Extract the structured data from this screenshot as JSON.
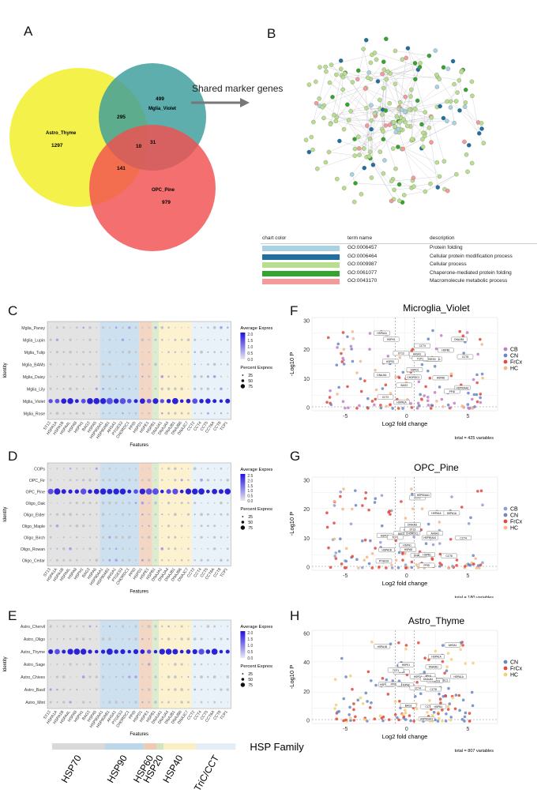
{
  "panels": {
    "A": "A",
    "B": "B",
    "C": "C",
    "D": "D",
    "E": "E",
    "F": "F",
    "G": "G",
    "H": "H"
  },
  "venn": {
    "sets": [
      {
        "name": "Astro_Thyme",
        "count": "1297",
        "color": "#f2f02a"
      },
      {
        "name": "Mglia_Violet",
        "count": "499",
        "color": "#3a9c9c"
      },
      {
        "name": "OPC_Pine",
        "count": "979",
        "color": "#f25050"
      }
    ],
    "overlaps": {
      "astro_mglia": "295",
      "astro_opc": "141",
      "mglia_opc": "31",
      "all": "10"
    }
  },
  "arrow_label": "Shared marker genes",
  "network_legend": {
    "headers": [
      "chart color",
      "term name",
      "description"
    ],
    "rows": [
      {
        "color": "#a9d3e4",
        "term": "GO:0006457",
        "desc": "Protein folding"
      },
      {
        "color": "#1f6f9f",
        "term": "GO:0006464",
        "desc": "Cellular protein modification process"
      },
      {
        "color": "#b9df8e",
        "term": "GO:0009987",
        "desc": "Cellular process"
      },
      {
        "color": "#35a32f",
        "term": "GO:0061077",
        "desc": "Chaperone-mediated protein folding"
      },
      {
        "color": "#f59a9a",
        "term": "GO:0043170",
        "desc": "Macromolecule metabolic process"
      }
    ]
  },
  "dotplot": {
    "features": [
      "ST13",
      "HSPA1A",
      "HSPA1B",
      "HSPA4L",
      "HSPA8",
      "HSPH1",
      "BAG3",
      "HSPA5",
      "HSP90AA1",
      "HSP90AB1",
      "AHSA1",
      "PTGES3",
      "CHORDC1",
      "PPID",
      "HSPD1",
      "HSPE1",
      "HSPB1",
      "DNAJA1",
      "DNAJA4",
      "DNAJB1",
      "DNAJB6",
      "DNAJC7",
      "CCT2",
      "CCT4",
      "CCT5",
      "CCT6A",
      "CCT8",
      "TCP1"
    ],
    "xlabel": "Features",
    "ylabel": "Identity",
    "legend_avg": "Average Expression",
    "legend_pct": "Percent Expressed",
    "pct_ticks": [
      "25",
      "50",
      "75"
    ],
    "C": {
      "rows": [
        "Mglia_Pansy",
        "Mglia_Lupin",
        "Mglia_Tulip",
        "Mglia_BAMs",
        "Mglia_Daisy",
        "Mglia_Lily",
        "Mglia_Violet",
        "Mglia_Rose"
      ],
      "avg_ticks": [
        "2.0",
        "1.5",
        "1.0",
        "0.5",
        "0.0"
      ],
      "highlight": 6
    },
    "D": {
      "rows": [
        "COPs",
        "OPC_Fir",
        "OPC_Pine",
        "Oligo_Oak",
        "Oligo_Elder",
        "Oligo_Maple",
        "Oligo_Birch",
        "Oligo_Rowan",
        "Oligo_Cedar"
      ],
      "avg_ticks": [
        "2.5",
        "2.0",
        "1.5",
        "1.0",
        "0.5",
        "0.0"
      ],
      "highlight": 2
    },
    "E": {
      "rows": [
        "Astro_Chervil",
        "Astro_Oligo",
        "Astro_Thyme",
        "Astro_Sage",
        "Astro_Chives",
        "Astro_Basil",
        "Astro_Mint"
      ],
      "avg_ticks": [
        "2.0",
        "1.5",
        "1.0",
        "0.5",
        "0.0"
      ],
      "highlight": 2
    }
  },
  "hsp_family": {
    "title": "HSP Family",
    "groups": [
      {
        "name": "HSP70",
        "color": "#d9d9d9",
        "n": 8
      },
      {
        "name": "HSP90",
        "color": "#bcd6ea",
        "n": 6
      },
      {
        "name": "HSP60",
        "color": "#efcab0",
        "n": 2
      },
      {
        "name": "HSP20",
        "color": "#cfe6c2",
        "n": 1
      },
      {
        "name": "HSP40",
        "color": "#fbeec0",
        "n": 5
      },
      {
        "name": "TriC/CCT",
        "color": "#e2edf6",
        "n": 6
      }
    ]
  },
  "volcano": {
    "xlabel": "Log2 fold change",
    "ylabel": "-Log10 P",
    "F": {
      "title": "Microglia_Violet",
      "total": "total = 425 variables",
      "yticks": [
        "30",
        "20",
        "10",
        "0"
      ],
      "xticks": [
        "-5",
        "0",
        "5"
      ],
      "legend": [
        {
          "name": "CB",
          "color": "#c07fc9"
        },
        {
          "name": "CN",
          "color": "#6c86c4"
        },
        {
          "name": "FrCx",
          "color": "#e0493b"
        },
        {
          "name": "HC",
          "color": "#f2b98a"
        }
      ]
    },
    "G": {
      "title": "OPC_Pine",
      "total": "total = 180 variables",
      "yticks": [
        "30",
        "20",
        "10",
        "0"
      ],
      "xticks": [
        "-5",
        "0",
        "5"
      ],
      "legend": [
        {
          "name": "CB",
          "color": "#8fa0cf"
        },
        {
          "name": "CN",
          "color": "#6c86c4"
        },
        {
          "name": "FrCx",
          "color": "#e0493b"
        },
        {
          "name": "HC",
          "color": "#f2b98a"
        }
      ]
    },
    "H": {
      "title": "Astro_Thyme",
      "total": "total = 807 variables",
      "yticks": [
        "60",
        "40",
        "20",
        "0"
      ],
      "xticks": [
        "-5",
        "0",
        "5"
      ],
      "legend": [
        {
          "name": "CN",
          "color": "#6c86c4"
        },
        {
          "name": "FrCx",
          "color": "#e0493b"
        },
        {
          "name": "HC",
          "color": "#f2d07a"
        }
      ]
    },
    "gene_labels": [
      "HSP90AA1",
      "HSPA1A",
      "HSPA1B",
      "DNAJB1",
      "HSPH1",
      "BAG3",
      "HSPA8",
      "CHORDC1",
      "PTGES3",
      "AHSA1",
      "HSPD1",
      "HSPE1",
      "CCT4",
      "CCT2",
      "ST13",
      "DNAJA1",
      "HSPB1",
      "CCT8",
      "TCP1",
      "PPID"
    ]
  }
}
